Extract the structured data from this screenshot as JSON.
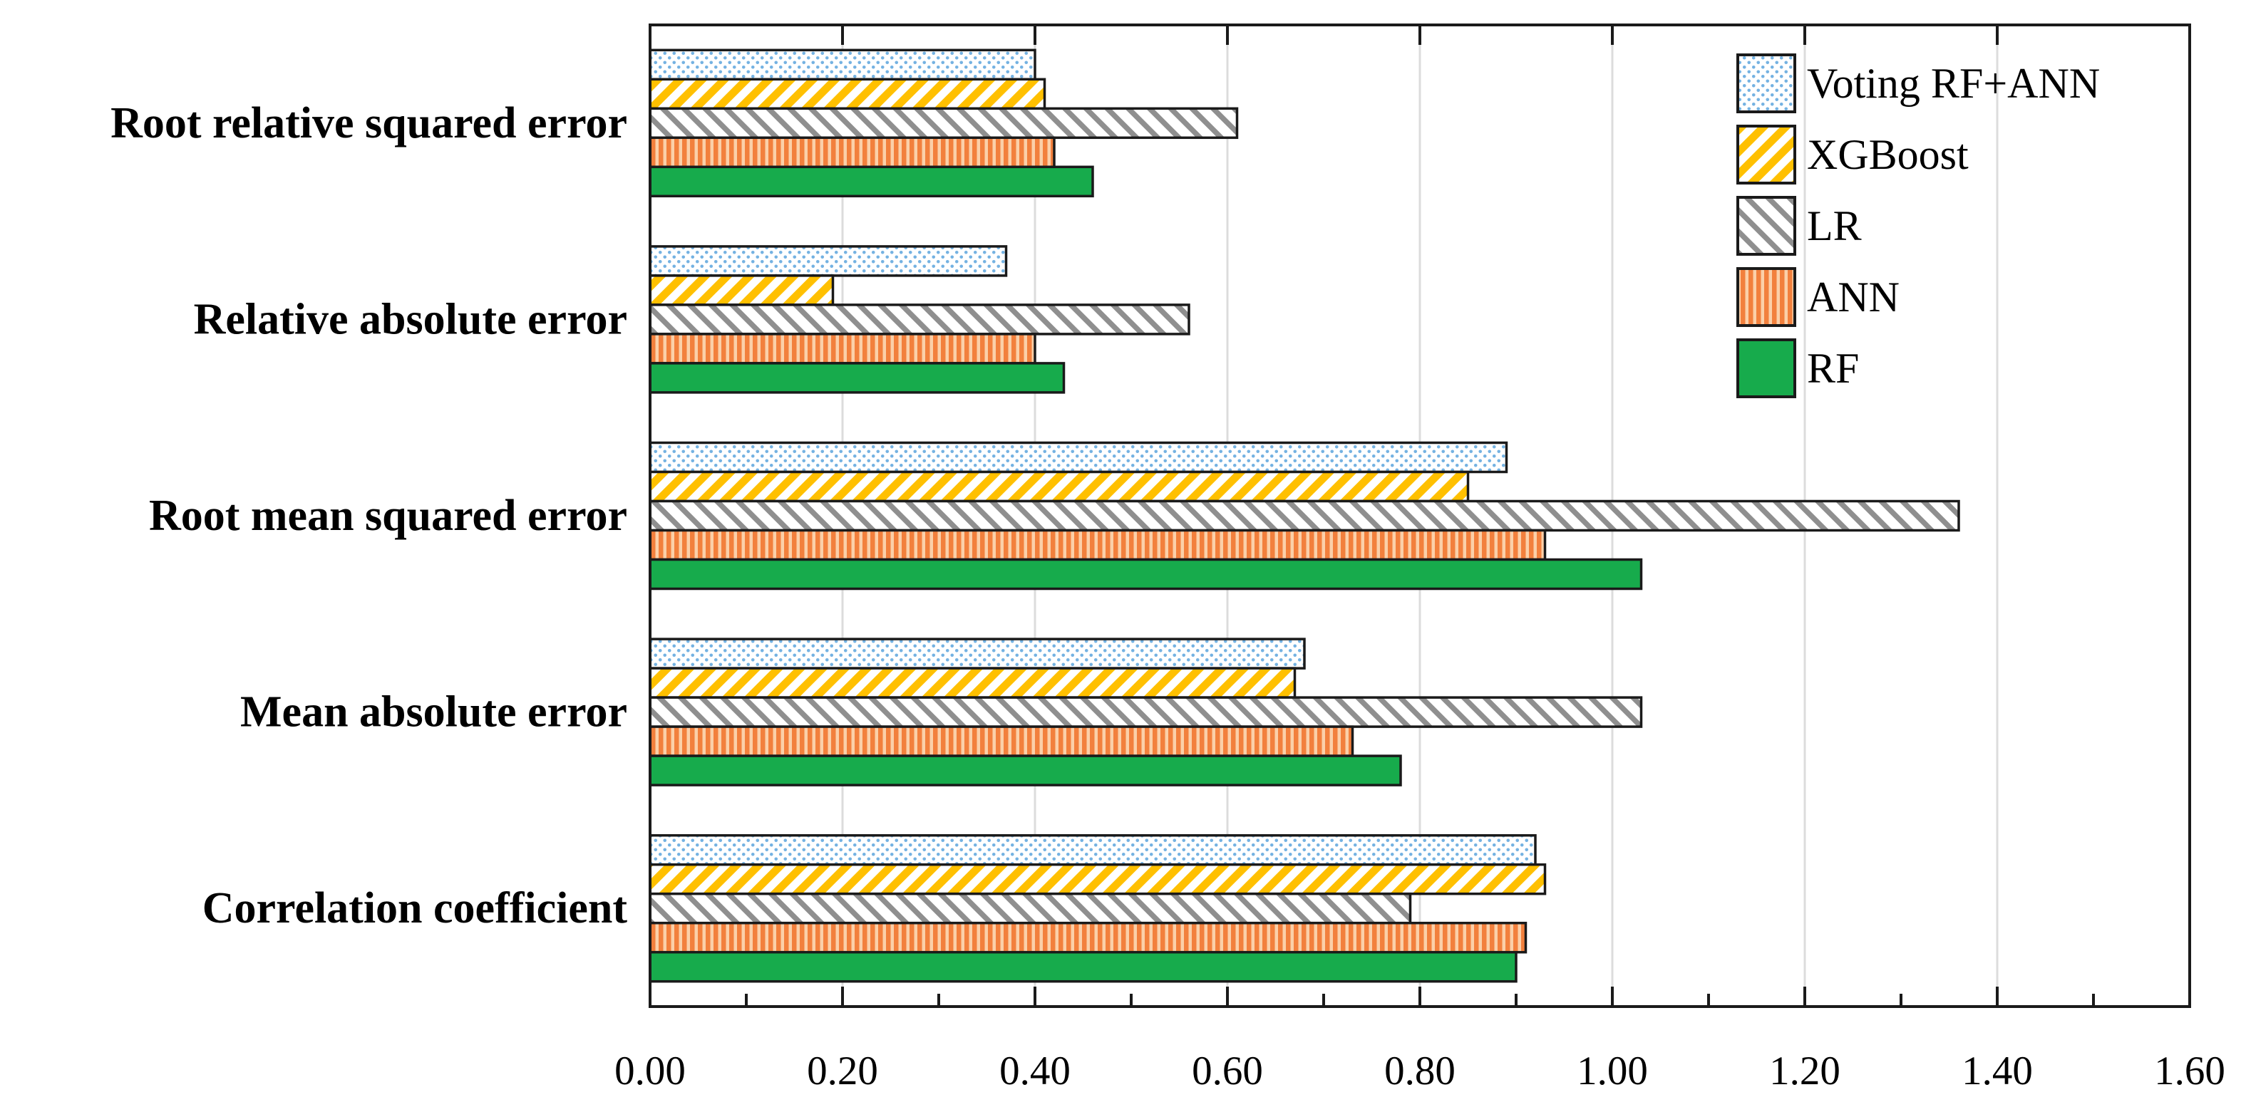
{
  "chart_data": {
    "type": "bar",
    "orientation": "horizontal",
    "title": "",
    "xlabel": "",
    "ylabel": "",
    "xlim": [
      0,
      1.6
    ],
    "x_tick_labels": [
      "0.00",
      "0.20",
      "0.40",
      "0.60",
      "0.80",
      "1.00",
      "1.20",
      "1.40",
      "1.60"
    ],
    "x_major_tick_step": 0.2,
    "x_minor_tick_step": 0.1,
    "grid": "vertical light-gray gridlines at major ticks",
    "legend_position": "top-right inside plot",
    "categories": [
      "Root relative squared error",
      "Relative absolute error",
      "Root mean squared error",
      "Mean absolute error",
      "Correlation coefficient"
    ],
    "series": [
      {
        "name": "Voting RF+ANN",
        "pattern": "blue-dots",
        "values": [
          0.4,
          0.37,
          0.89,
          0.68,
          0.92
        ]
      },
      {
        "name": "XGBoost",
        "pattern": "yellow-diagonal",
        "values": [
          0.41,
          0.19,
          0.85,
          0.67,
          0.93
        ]
      },
      {
        "name": "LR",
        "pattern": "gray-diagonal",
        "values": [
          0.61,
          0.56,
          1.36,
          1.03,
          0.79
        ]
      },
      {
        "name": "ANN",
        "pattern": "orange-vertical",
        "values": [
          0.42,
          0.4,
          0.93,
          0.73,
          0.91
        ]
      },
      {
        "name": "RF",
        "pattern": "green-solid",
        "values": [
          0.46,
          0.43,
          1.03,
          0.78,
          0.9
        ]
      }
    ]
  },
  "colors": {
    "voting_dot": "#74B2E2",
    "xgboost_stripe": "#FFC000",
    "lr_stripe": "#8F8F8F",
    "ann_base": "#F2803D",
    "ann_stripe": "#FBD0A9",
    "rf_fill": "#17AB4C",
    "bar_outline": "#1A1A1A",
    "gridline": "#DCDCDC",
    "axis": "#1A1A1A",
    "text": "#000000",
    "background": "#FFFFFF"
  }
}
